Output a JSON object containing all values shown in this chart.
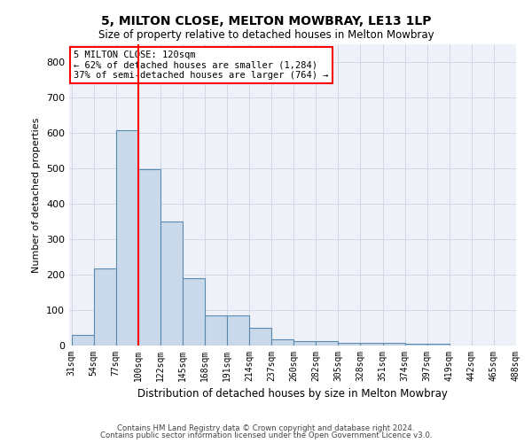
{
  "title1": "5, MILTON CLOSE, MELTON MOWBRAY, LE13 1LP",
  "title2": "Size of property relative to detached houses in Melton Mowbray",
  "xlabel": "Distribution of detached houses by size in Melton Mowbray",
  "ylabel": "Number of detached properties",
  "bin_labels": [
    "31sqm",
    "54sqm",
    "77sqm",
    "100sqm",
    "122sqm",
    "145sqm",
    "168sqm",
    "191sqm",
    "214sqm",
    "237sqm",
    "260sqm",
    "282sqm",
    "305sqm",
    "328sqm",
    "351sqm",
    "374sqm",
    "397sqm",
    "419sqm",
    "442sqm",
    "465sqm",
    "488sqm"
  ],
  "bar_heights": [
    30,
    218,
    608,
    497,
    350,
    190,
    84,
    84,
    50,
    18,
    13,
    13,
    8,
    7,
    7,
    5,
    5,
    0,
    0,
    0
  ],
  "bar_color": "#c9d9ea",
  "bar_edge_color": "#5a8ab0",
  "red_line_x": 3,
  "annotation_text": "5 MILTON CLOSE: 120sqm\n← 62% of detached houses are smaller (1,284)\n37% of semi-detached houses are larger (764) →",
  "ylim": [
    0,
    850
  ],
  "yticks": [
    0,
    100,
    200,
    300,
    400,
    500,
    600,
    700,
    800
  ],
  "grid_color": "#d0d8e8",
  "background_color": "#eef2f8",
  "footer1": "Contains HM Land Registry data © Crown copyright and database right 2024.",
  "footer2": "Contains public sector information licensed under the Open Government Licence v3.0."
}
